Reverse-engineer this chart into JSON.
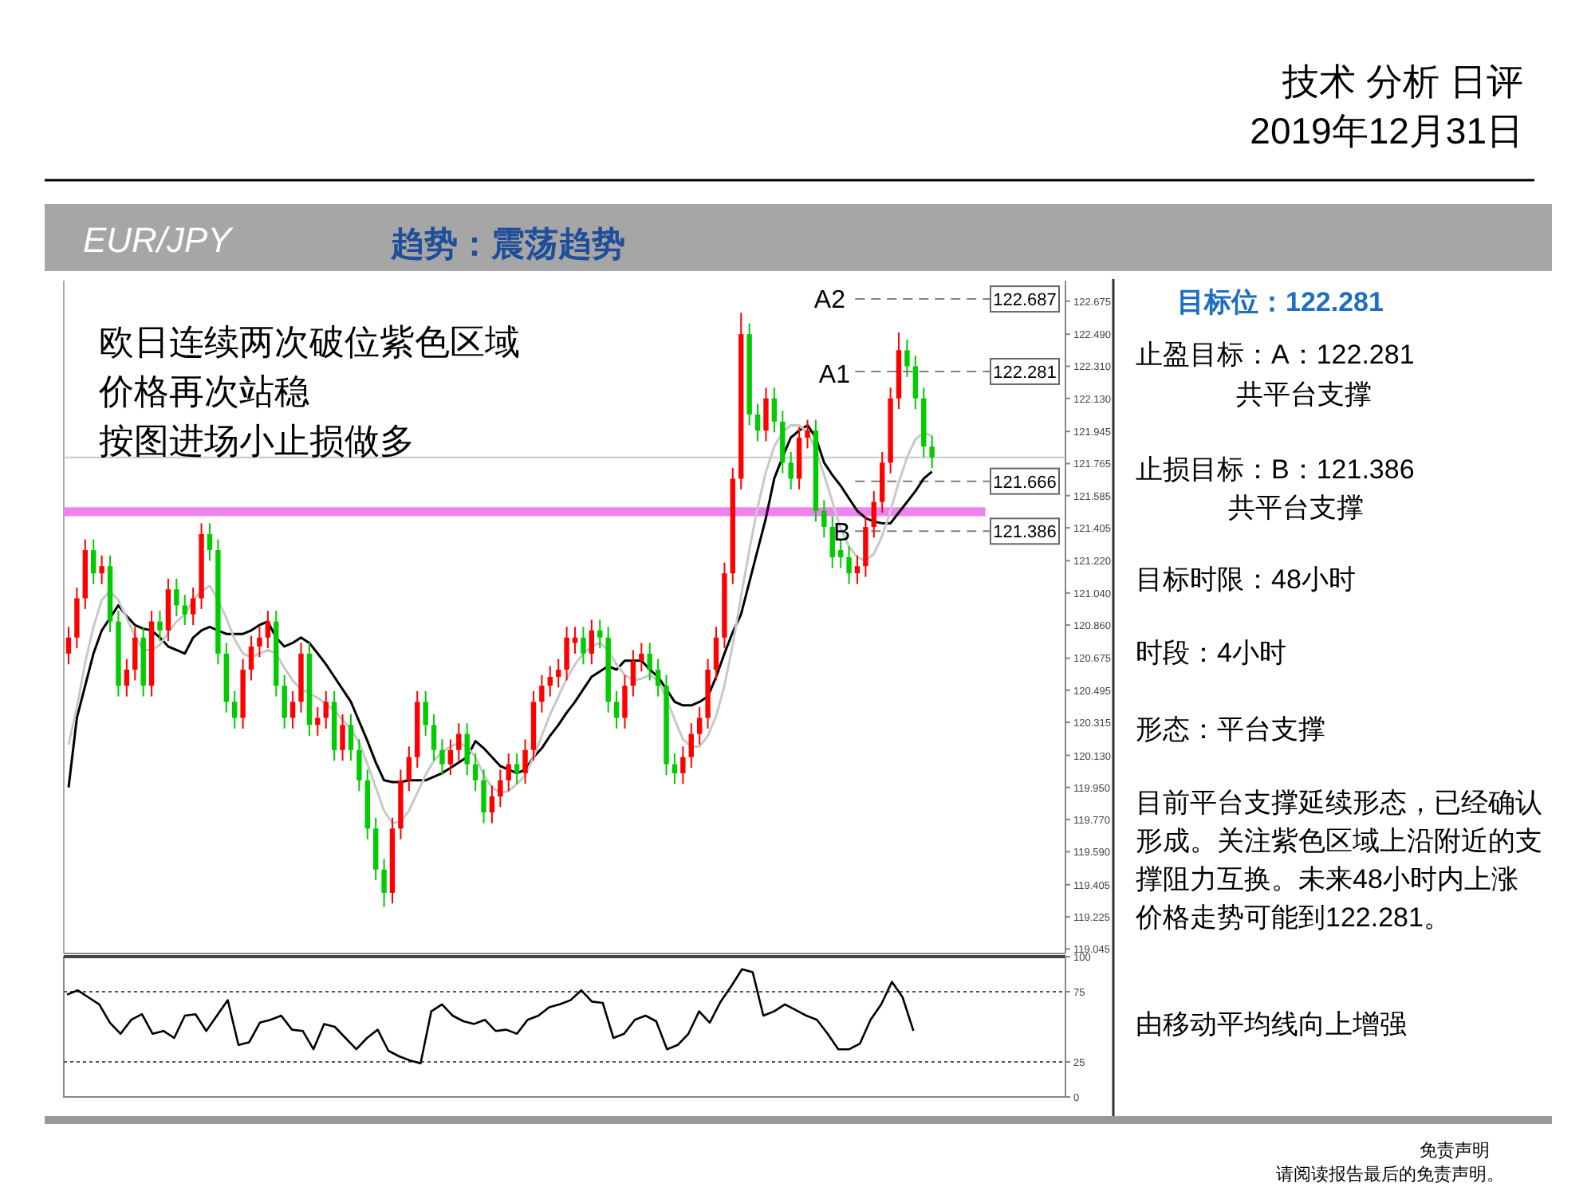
{
  "chart_data": [
    {
      "type": "other",
      "title": "技术 分析 日评",
      "subtitle": "2019年12月31日",
      "annotations": [
        "免责声明",
        "请阅读报告最后的免责声明。"
      ]
    },
    {
      "type": "candlestick",
      "title": "EUR/JPY",
      "subtitle": "趋势：震荡趋势",
      "annotations": [
        "欧日连续两次破位紫色区域",
        "价格再次站稳",
        "按图进场小止损做多",
        "A2",
        "A1",
        {
          "text": "B",
          "y": 121.386
        }
      ],
      "categories": [
        null,
        null,
        null,
        null,
        null,
        null,
        null,
        null,
        null,
        null,
        null,
        null,
        null,
        null,
        null,
        null,
        null,
        null,
        null,
        null,
        null,
        null,
        null,
        null,
        null,
        null,
        null,
        null,
        null,
        null,
        null,
        null,
        null,
        null,
        null,
        null,
        null,
        null,
        null,
        null,
        null,
        null,
        null,
        null,
        null,
        null,
        null,
        null,
        null,
        null,
        null,
        null,
        null,
        null,
        null,
        null,
        null,
        null,
        null,
        null,
        null,
        null,
        null,
        null,
        null,
        null,
        null,
        null,
        null,
        null,
        null,
        null,
        null,
        null,
        null,
        null,
        null,
        null,
        null,
        null,
        null,
        null,
        null,
        null,
        null,
        null,
        null,
        null,
        null,
        null,
        null,
        null,
        null,
        null,
        null,
        null,
        null,
        null,
        null,
        null,
        null,
        null,
        null,
        null,
        null
      ],
      "ohlc": [
        [
          120.7,
          120.85,
          120.64,
          120.79
        ],
        [
          120.79,
          121.07,
          120.73,
          121.01
        ],
        [
          121.01,
          121.34,
          120.95,
          121.28
        ],
        [
          121.28,
          121.34,
          121.09,
          121.15
        ],
        [
          121.15,
          121.25,
          121.09,
          121.19
        ],
        [
          121.19,
          121.25,
          120.82,
          120.88
        ],
        [
          120.88,
          120.94,
          120.46,
          120.52
        ],
        [
          120.52,
          120.67,
          120.46,
          120.61
        ],
        [
          120.61,
          120.85,
          120.55,
          120.79
        ],
        [
          120.79,
          120.85,
          120.46,
          120.52
        ],
        [
          120.52,
          120.94,
          120.46,
          120.88
        ],
        [
          120.88,
          120.94,
          120.77,
          120.83
        ],
        [
          120.83,
          121.12,
          120.77,
          121.06
        ],
        [
          121.06,
          121.12,
          120.91,
          120.97
        ],
        [
          120.97,
          121.03,
          120.86,
          120.92
        ],
        [
          120.92,
          121.07,
          120.86,
          121.01
        ],
        [
          121.01,
          121.43,
          120.95,
          121.37
        ],
        [
          121.37,
          121.43,
          121.22,
          121.28
        ],
        [
          121.28,
          121.34,
          120.64,
          120.7
        ],
        [
          120.7,
          120.76,
          120.37,
          120.43
        ],
        [
          120.43,
          120.49,
          120.28,
          120.34
        ],
        [
          120.34,
          120.67,
          120.28,
          120.61
        ],
        [
          120.61,
          120.8,
          120.55,
          120.74
        ],
        [
          120.74,
          120.85,
          120.68,
          120.79
        ],
        [
          120.79,
          120.94,
          120.73,
          120.88
        ],
        [
          120.88,
          120.94,
          120.46,
          120.52
        ],
        [
          120.52,
          120.58,
          120.28,
          120.34
        ],
        [
          120.34,
          120.49,
          120.28,
          120.43
        ],
        [
          120.43,
          120.76,
          120.37,
          120.7
        ],
        [
          120.7,
          120.76,
          120.24,
          120.3
        ],
        [
          120.3,
          120.4,
          120.24,
          120.34
        ],
        [
          120.34,
          120.49,
          120.28,
          120.43
        ],
        [
          120.43,
          120.49,
          120.1,
          120.16
        ],
        [
          120.16,
          120.36,
          120.1,
          120.3
        ],
        [
          120.3,
          120.36,
          120.1,
          120.16
        ],
        [
          120.16,
          120.22,
          119.93,
          119.99
        ],
        [
          119.99,
          120.05,
          119.66,
          119.72
        ],
        [
          119.72,
          119.78,
          119.43,
          119.49
        ],
        [
          119.49,
          119.55,
          119.28,
          119.36
        ],
        [
          119.36,
          119.78,
          119.3,
          119.72
        ],
        [
          119.72,
          120.05,
          119.66,
          119.99
        ],
        [
          119.99,
          120.18,
          119.93,
          120.12
        ],
        [
          120.12,
          120.49,
          120.06,
          120.43
        ],
        [
          120.43,
          120.49,
          120.24,
          120.3
        ],
        [
          120.3,
          120.36,
          120.1,
          120.16
        ],
        [
          120.16,
          120.22,
          120.02,
          120.08
        ],
        [
          120.08,
          120.22,
          120.02,
          120.16
        ],
        [
          120.16,
          120.31,
          120.1,
          120.25
        ],
        [
          120.25,
          120.31,
          120.02,
          120.08
        ],
        [
          120.08,
          120.14,
          119.93,
          119.99
        ],
        [
          119.99,
          120.05,
          119.75,
          119.81
        ],
        [
          119.81,
          119.96,
          119.75,
          119.9
        ],
        [
          119.9,
          120.05,
          119.84,
          119.99
        ],
        [
          119.99,
          120.14,
          119.93,
          120.08
        ],
        [
          120.08,
          120.14,
          119.97,
          120.03
        ],
        [
          120.03,
          120.22,
          119.97,
          120.16
        ],
        [
          120.16,
          120.49,
          120.1,
          120.43
        ],
        [
          120.43,
          120.58,
          120.37,
          120.52
        ],
        [
          120.52,
          120.63,
          120.46,
          120.57
        ],
        [
          120.57,
          120.67,
          120.51,
          120.61
        ],
        [
          120.61,
          120.85,
          120.55,
          120.79
        ],
        [
          120.76,
          120.85,
          120.7,
          120.79
        ],
        [
          120.79,
          120.85,
          120.64,
          120.7
        ],
        [
          120.7,
          120.89,
          120.64,
          120.83
        ],
        [
          120.83,
          120.89,
          120.73,
          120.79
        ],
        [
          120.79,
          120.85,
          120.37,
          120.43
        ],
        [
          120.43,
          120.49,
          120.28,
          120.34
        ],
        [
          120.34,
          120.58,
          120.28,
          120.52
        ],
        [
          120.52,
          120.72,
          120.46,
          120.66
        ],
        [
          120.66,
          120.76,
          120.6,
          120.7
        ],
        [
          120.7,
          120.76,
          120.55,
          120.61
        ],
        [
          120.61,
          120.67,
          120.46,
          120.52
        ],
        [
          120.52,
          120.58,
          120.02,
          120.08
        ],
        [
          120.08,
          120.14,
          119.97,
          120.03
        ],
        [
          120.03,
          120.18,
          119.97,
          120.12
        ],
        [
          120.12,
          120.31,
          120.06,
          120.25
        ],
        [
          120.25,
          120.4,
          120.19,
          120.34
        ],
        [
          120.34,
          120.67,
          120.28,
          120.61
        ],
        [
          120.61,
          120.85,
          120.55,
          120.79
        ],
        [
          120.79,
          121.21,
          120.73,
          121.15
        ],
        [
          121.15,
          121.74,
          121.09,
          121.68
        ],
        [
          121.68,
          122.61,
          121.62,
          122.49
        ],
        [
          122.49,
          122.55,
          121.98,
          122.04
        ],
        [
          122.04,
          122.1,
          121.89,
          121.95
        ],
        [
          121.95,
          122.19,
          121.89,
          122.13
        ],
        [
          122.13,
          122.19,
          121.94,
          122.0
        ],
        [
          122.0,
          122.06,
          121.71,
          121.77
        ],
        [
          121.77,
          121.83,
          121.62,
          121.68
        ],
        [
          121.68,
          121.97,
          121.62,
          121.91
        ],
        [
          121.91,
          122.01,
          121.85,
          121.95
        ],
        [
          121.95,
          122.01,
          121.44,
          121.5
        ],
        [
          121.5,
          121.56,
          121.35,
          121.41
        ],
        [
          121.41,
          121.47,
          121.18,
          121.24
        ],
        [
          121.28,
          121.34,
          121.18,
          121.24
        ],
        [
          121.24,
          121.3,
          121.09,
          121.15
        ],
        [
          121.15,
          121.25,
          121.09,
          121.19
        ],
        [
          121.19,
          121.47,
          121.13,
          121.41
        ],
        [
          121.41,
          121.61,
          121.35,
          121.55
        ],
        [
          121.55,
          121.83,
          121.49,
          121.77
        ],
        [
          121.77,
          122.19,
          121.71,
          122.13
        ],
        [
          122.13,
          122.5,
          122.07,
          122.4
        ],
        [
          122.4,
          122.46,
          122.25,
          122.31
        ],
        [
          122.31,
          122.37,
          122.07,
          122.13
        ],
        [
          122.13,
          122.19,
          121.8,
          121.86
        ],
        [
          121.86,
          121.92,
          121.74,
          121.8
        ]
      ],
      "colors": [
        "#ff0000",
        "#ff0000",
        "#ff0000",
        "#00cc00",
        "#ff0000",
        "#00cc00",
        "#00cc00",
        "#ff0000",
        "#ff0000",
        "#00cc00",
        "#ff0000",
        "#00cc00",
        "#ff0000",
        "#00cc00",
        "#00cc00",
        "#ff0000",
        "#ff0000",
        "#00cc00",
        "#00cc00",
        "#00cc00",
        "#00cc00",
        "#ff0000",
        "#ff0000",
        "#ff0000",
        "#ff0000",
        "#00cc00",
        "#00cc00",
        "#ff0000",
        "#ff0000",
        "#00cc00",
        "#ff0000",
        "#ff0000",
        "#00cc00",
        "#ff0000",
        "#00cc00",
        "#00cc00",
        "#00cc00",
        "#00cc00",
        "#00cc00",
        "#ff0000",
        "#ff0000",
        "#ff0000",
        "#ff0000",
        "#00cc00",
        "#00cc00",
        "#00cc00",
        "#ff0000",
        "#ff0000",
        "#00cc00",
        "#00cc00",
        "#00cc00",
        "#ff0000",
        "#ff0000",
        "#ff0000",
        "#00cc00",
        "#ff0000",
        "#ff0000",
        "#ff0000",
        "#ff0000",
        "#ff0000",
        "#ff0000",
        "#ff0000",
        "#00cc00",
        "#ff0000",
        "#00cc00",
        "#00cc00",
        "#00cc00",
        "#ff0000",
        "#ff0000",
        "#ff0000",
        "#00cc00",
        "#00cc00",
        "#00cc00",
        "#00cc00",
        "#ff0000",
        "#ff0000",
        "#ff0000",
        "#ff0000",
        "#ff0000",
        "#ff0000",
        "#ff0000",
        "#ff0000",
        "#00cc00",
        "#00cc00",
        "#ff0000",
        "#00cc00",
        "#00cc00",
        "#00cc00",
        "#ff0000",
        "#ff0000",
        "#00cc00",
        "#00cc00",
        "#00cc00",
        "#00cc00",
        "#00cc00",
        "#ff0000",
        "#ff0000",
        "#ff0000",
        "#ff0000",
        "#ff0000",
        "#ff0000",
        "#00cc00",
        "#00cc00",
        "#00cc00",
        "#00cc00"
      ],
      "series": [
        {
          "type": "line",
          "color": "#000000",
          "values": [
            119.95,
            120.34,
            120.52,
            120.7,
            120.83,
            120.9,
            120.97,
            120.91,
            120.86,
            120.84,
            120.83,
            120.79,
            120.74,
            120.72,
            120.7,
            120.79,
            120.83,
            120.85,
            120.83,
            120.81,
            120.81,
            120.81,
            120.83,
            120.86,
            120.88,
            120.79,
            120.74,
            120.76,
            120.79,
            120.76,
            120.7,
            120.64,
            120.57,
            120.5,
            120.43,
            120.32,
            120.21,
            120.09,
            119.99,
            119.98,
            119.98,
            119.99,
            119.99,
            119.99,
            120.01,
            120.03,
            120.06,
            120.09,
            120.12,
            120.21,
            120.17,
            120.12,
            120.07,
            120.05,
            120.03,
            120.05,
            120.12,
            120.17,
            120.24,
            120.3,
            120.37,
            120.43,
            120.5,
            120.57,
            120.6,
            120.63,
            120.61,
            120.66,
            120.66,
            120.66,
            120.61,
            120.57,
            120.5,
            120.43,
            120.41,
            120.41,
            120.43,
            120.46,
            120.57,
            120.7,
            120.82,
            120.92,
            121.1,
            121.28,
            121.46,
            121.68,
            121.8,
            121.91,
            121.95,
            121.98,
            121.91,
            121.77,
            121.7,
            121.64,
            121.57,
            121.5,
            121.46,
            121.44,
            121.43,
            121.43,
            121.49,
            121.55,
            121.61,
            121.68,
            121.72
          ]
        },
        {
          "type": "line",
          "color": "#c8c8c8",
          "values": [
            120.19,
            120.4,
            120.65,
            120.85,
            121.0,
            121.05,
            121.0,
            120.9,
            120.8,
            120.72,
            120.72,
            120.75,
            120.82,
            120.88,
            120.92,
            121.0,
            121.05,
            121.08,
            121.0,
            120.9,
            120.78,
            120.7,
            120.68,
            120.7,
            120.72,
            120.7,
            120.62,
            120.55,
            120.5,
            120.48,
            120.45,
            120.42,
            120.38,
            120.33,
            120.28,
            120.2,
            120.08,
            119.95,
            119.82,
            119.75,
            119.76,
            119.82,
            119.92,
            120.02,
            120.1,
            120.15,
            120.18,
            120.2,
            120.18,
            120.12,
            120.02,
            119.95,
            119.92,
            119.93,
            119.97,
            120.02,
            120.12,
            120.24,
            120.36,
            120.46,
            120.56,
            120.64,
            120.7,
            120.74,
            120.76,
            120.72,
            120.64,
            120.58,
            120.55,
            120.56,
            120.58,
            120.55,
            120.45,
            120.33,
            120.22,
            120.18,
            120.18,
            120.24,
            120.35,
            120.52,
            120.75,
            121.02,
            121.28,
            121.52,
            121.72,
            121.86,
            121.94,
            121.98,
            121.98,
            121.94,
            121.84,
            121.7,
            121.55,
            121.4,
            121.3,
            121.24,
            121.22,
            121.26,
            121.36,
            121.5,
            121.66,
            121.8,
            121.9,
            121.94,
            121.92
          ]
        }
      ],
      "ylim": [
        119.02,
        122.79
      ],
      "yticks": [
        {
          "value": 122.675,
          "label": "122.675"
        },
        {
          "value": 122.49,
          "label": "122.490"
        },
        {
          "value": 122.31,
          "label": "122.310"
        },
        {
          "value": 122.13,
          "label": "122.130"
        },
        {
          "value": 121.945,
          "label": "121.945"
        },
        {
          "value": 121.765,
          "label": "121.765"
        },
        {
          "value": 121.585,
          "label": "121.585"
        },
        {
          "value": 121.405,
          "label": "121.405"
        },
        {
          "value": 121.22,
          "label": "121.220"
        },
        {
          "value": 121.04,
          "label": "121.040"
        },
        {
          "value": 120.86,
          "label": "120.860"
        },
        {
          "value": 120.675,
          "label": "120.675"
        },
        {
          "value": 120.495,
          "label": "120.495"
        },
        {
          "value": 120.315,
          "label": "120.315"
        },
        {
          "value": 120.13,
          "label": "120.130"
        },
        {
          "value": 119.95,
          "label": "119.950"
        },
        {
          "value": 119.77,
          "label": "119.770"
        },
        {
          "value": 119.59,
          "label": "119.590"
        },
        {
          "value": 119.405,
          "label": "119.405"
        },
        {
          "value": 119.225,
          "label": "119.225"
        },
        {
          "value": 119.045,
          "label": "119.045"
        }
      ],
      "ref_lines": [
        {
          "axis": "y",
          "value": 122.687,
          "label": "122.687",
          "line_style": "dashed",
          "color": "#808080"
        },
        {
          "axis": "y",
          "value": 122.281,
          "label": "122.281",
          "line_style": "dashed",
          "color": "#808080"
        },
        {
          "axis": "y",
          "value": 121.666,
          "label": "121.666",
          "line_style": "dashed",
          "color": "#808080"
        },
        {
          "axis": "y",
          "value": 121.386,
          "label": "121.386",
          "line_style": "dashed",
          "color": "#808080"
        },
        {
          "axis": "y",
          "value": 121.8,
          "line_style": "solid",
          "color": "#c8c8c8"
        }
      ],
      "bands": [
        {
          "axis": "y",
          "from": 121.47,
          "to": 121.52,
          "color": "#ee82ee"
        }
      ],
      "tick_labels": "y"
    },
    {
      "type": "line",
      "categories": [
        null,
        null,
        null,
        null,
        null,
        null,
        null,
        null,
        null,
        null,
        null,
        null,
        null,
        null,
        null,
        null,
        null,
        null,
        null,
        null,
        null,
        null,
        null,
        null,
        null,
        null,
        null,
        null,
        null,
        null,
        null,
        null,
        null,
        null,
        null,
        null,
        null,
        null,
        null,
        null,
        null,
        null,
        null,
        null,
        null,
        null,
        null,
        null,
        null,
        null,
        null,
        null,
        null,
        null,
        null,
        null,
        null,
        null,
        null,
        null,
        null,
        null,
        null,
        null,
        null,
        null,
        null,
        null,
        null,
        null,
        null,
        null,
        null,
        null,
        null,
        null,
        null,
        null,
        null,
        null
      ],
      "series": [
        {
          "color": "#000000",
          "values": [
            73,
            76,
            71,
            66,
            53,
            45,
            55,
            59,
            45,
            47,
            42,
            58,
            59,
            47,
            58,
            69,
            37,
            39,
            53,
            55,
            58,
            48,
            47,
            34,
            52,
            50,
            42,
            34,
            42,
            48,
            33,
            29,
            26,
            24,
            61,
            66,
            58,
            54,
            52,
            55,
            47,
            48,
            45,
            55,
            58,
            64,
            66,
            69,
            76,
            68,
            67,
            42,
            45,
            55,
            58,
            54,
            34,
            37,
            45,
            61,
            53,
            68,
            79,
            91,
            89,
            58,
            61,
            66,
            62,
            58,
            55,
            45,
            34,
            34,
            38,
            55,
            66,
            82,
            71,
            47
          ]
        }
      ],
      "ylim": [
        0,
        100
      ],
      "yticks": [
        0,
        25,
        75,
        100
      ],
      "ref_lines": [
        {
          "axis": "y",
          "value": 25,
          "line_style": "dotted",
          "color": "#555555"
        },
        {
          "axis": "y",
          "value": 75,
          "line_style": "dotted",
          "color": "#555555"
        }
      ],
      "tick_labels": "y"
    },
    {
      "type": "other",
      "title": "目标位：122.281",
      "annotations": [
        "止盈目标：A：122.281",
        "共平台支撑",
        "止损目标：B：121.386",
        "共平台支撑",
        "目标时限：48小时",
        "时段：4小时",
        "形态：平台支撑",
        "目前平台支撑延续形态，已经确认形成。关注紫色区域上沿附近的支撑阻力互换。未来48小时内上涨价格走势可能到122.281。",
        "由移动平均线向上增强"
      ]
    }
  ]
}
